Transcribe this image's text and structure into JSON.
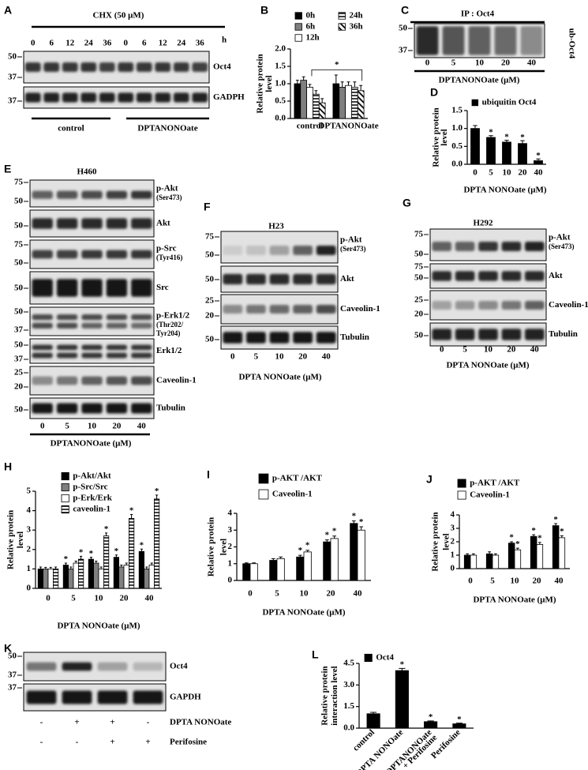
{
  "chart_data": [
    {
      "panel": "B",
      "type": "bar",
      "ylabel": [
        "Relative protein",
        "level"
      ],
      "categories": [
        "control",
        "DPTANONOate"
      ],
      "series": [
        {
          "name": "0h",
          "color": "#000000",
          "values": [
            1.0,
            1.0
          ],
          "errors": [
            0.1,
            0.25
          ]
        },
        {
          "name": "6h",
          "color": "#7f7f7f",
          "values": [
            1.1,
            0.9
          ],
          "errors": [
            0.1,
            0.15
          ]
        },
        {
          "name": "12h",
          "color": "#ffffff",
          "values": [
            0.9,
            0.95
          ],
          "errors": [
            0.08,
            0.1
          ]
        },
        {
          "name": "24h",
          "color": "#ffffff",
          "pattern": "horizontal",
          "values": [
            0.7,
            0.9
          ],
          "errors": [
            0.1,
            0.15
          ]
        },
        {
          "name": "36h",
          "color": "#ffffff",
          "pattern": "diagonal",
          "values": [
            0.45,
            0.8
          ],
          "errors": [
            0.12,
            0.15
          ]
        }
      ],
      "ylim": [
        0,
        2
      ],
      "yticks": [
        {
          "value": 0,
          "label": "0.0"
        },
        {
          "value": 0.5,
          "label": "0.5"
        },
        {
          "value": 1,
          "label": "1.0"
        },
        {
          "value": 1.5,
          "label": "1.5"
        },
        {
          "value": 2,
          "label": "2.0"
        }
      ],
      "annotation": "*"
    },
    {
      "panel": "D",
      "type": "bar",
      "ylabel": [
        "Relative protein",
        "level"
      ],
      "xlabel": "DPTA NONOate (μM)",
      "categories": [
        "0",
        "5",
        "10",
        "20",
        "40"
      ],
      "series": [
        {
          "name": "ubiquitin Oct4",
          "color": "#000000",
          "values": [
            1.0,
            0.75,
            0.62,
            0.58,
            0.1
          ],
          "errors": [
            0.08,
            0.05,
            0.05,
            0.08,
            0.05
          ],
          "stars": [
            null,
            "*",
            "*",
            "*",
            "*"
          ]
        }
      ],
      "ylim": [
        0,
        1.5
      ],
      "yticks": [
        {
          "value": 0,
          "label": "0.0"
        },
        {
          "value": 0.5,
          "label": "0.5"
        },
        {
          "value": 1,
          "label": "1.0"
        },
        {
          "value": 1.5,
          "label": "1.5"
        }
      ]
    },
    {
      "panel": "H",
      "type": "bar",
      "ylabel": [
        "Relative protein",
        "level"
      ],
      "xlabel": "DPTA NONOate (μM)",
      "categories": [
        "0",
        "5",
        "10",
        "20",
        "40"
      ],
      "series": [
        {
          "name": "p-Akt/Akt",
          "color": "#000000",
          "values": [
            1.0,
            1.2,
            1.5,
            1.6,
            1.9
          ],
          "errors": [
            0.1,
            0.1,
            0.1,
            0.12,
            0.12
          ],
          "stars": [
            null,
            "*",
            "*",
            "*",
            "*"
          ]
        },
        {
          "name": "p-Src/Src",
          "color": "#7f7f7f",
          "values": [
            1.0,
            1.0,
            1.3,
            1.1,
            1.0
          ],
          "errors": [
            0.08,
            0.1,
            0.1,
            0.1,
            0.1
          ]
        },
        {
          "name": "p-Erk/Erk",
          "color": "#ffffff",
          "values": [
            1.0,
            1.3,
            1.0,
            1.2,
            1.2
          ],
          "errors": [
            0.08,
            0.1,
            0.1,
            0.1,
            0.1
          ]
        },
        {
          "name": "caveolin-1",
          "color": "#ffffff",
          "pattern": "horizontal",
          "values": [
            1.0,
            1.5,
            2.7,
            3.6,
            4.6
          ],
          "errors": [
            0.1,
            0.15,
            0.15,
            0.2,
            0.2
          ],
          "stars": [
            null,
            "*",
            "*",
            "*",
            "*"
          ]
        }
      ],
      "ylim": [
        0,
        5
      ],
      "yticks": [
        0,
        1,
        2,
        3,
        4,
        5
      ]
    },
    {
      "panel": "I",
      "type": "bar",
      "ylabel": [
        "Relative protein",
        "level"
      ],
      "xlabel": "DPTA NONOate (μM)",
      "categories": [
        "0",
        "5",
        "10",
        "20",
        "40"
      ],
      "series": [
        {
          "name": "p-AKT /AKT",
          "color": "#000000",
          "values": [
            1.0,
            1.2,
            1.4,
            2.3,
            3.4
          ],
          "errors": [
            0.05,
            0.1,
            0.1,
            0.12,
            0.15
          ],
          "stars": [
            null,
            null,
            "*",
            "*",
            "*"
          ]
        },
        {
          "name": "Caveolin-1",
          "color": "#ffffff",
          "values": [
            1.0,
            1.3,
            1.7,
            2.5,
            3.0
          ],
          "errors": [
            0.05,
            0.1,
            0.1,
            0.15,
            0.2
          ],
          "stars": [
            null,
            null,
            "*",
            "*",
            "*"
          ]
        }
      ],
      "ylim": [
        0,
        4
      ],
      "yticks": [
        0,
        1,
        2,
        3,
        4
      ]
    },
    {
      "panel": "J",
      "type": "bar",
      "ylabel": [
        "Relative protein",
        "level"
      ],
      "xlabel": "DPTA NONOate (μM)",
      "categories": [
        "0",
        "5",
        "10",
        "20",
        "40"
      ],
      "series": [
        {
          "name": "p-AKT /AKT",
          "color": "#000000",
          "values": [
            1.0,
            1.1,
            1.9,
            2.4,
            3.2
          ],
          "errors": [
            0.1,
            0.15,
            0.1,
            0.12,
            0.15
          ],
          "stars": [
            null,
            null,
            "*",
            "*",
            "*"
          ]
        },
        {
          "name": "Caveolin-1",
          "color": "#ffffff",
          "values": [
            1.0,
            1.0,
            1.4,
            1.8,
            2.3
          ],
          "errors": [
            0.1,
            0.1,
            0.12,
            0.15,
            0.15
          ],
          "stars": [
            null,
            null,
            "*",
            "*",
            "*"
          ]
        }
      ],
      "ylim": [
        0,
        4
      ],
      "yticks": [
        0,
        1,
        2,
        3,
        4
      ]
    },
    {
      "panel": "L",
      "type": "bar",
      "ylabel": [
        "Relative protein",
        "interaction level"
      ],
      "categories": [
        "control",
        "DPTA NONOate",
        [
          "DPTANONOate",
          "+ Perifosine"
        ],
        "Perifosine"
      ],
      "series": [
        {
          "name": "Oct4",
          "color": "#000000",
          "values": [
            1.0,
            4.0,
            0.45,
            0.3
          ],
          "errors": [
            0.1,
            0.15,
            0.05,
            0.05
          ],
          "stars": [
            null,
            "*",
            "*",
            "*"
          ]
        }
      ],
      "ylim": [
        0,
        4.5
      ],
      "yticks": [
        {
          "value": 0,
          "label": "0.0"
        },
        {
          "value": 1.5,
          "label": "1.5"
        },
        {
          "value": 3,
          "label": "3.0"
        },
        {
          "value": 4.5,
          "label": "4.5"
        }
      ]
    }
  ],
  "blots": [
    {
      "panel": "A",
      "title": "CHX (50 μM)",
      "lanes": [
        "0",
        "6",
        "12",
        "24",
        "36",
        "0",
        "6",
        "12",
        "24",
        "36"
      ],
      "lane_unit": "h",
      "strips": [
        {
          "label": "Oct4",
          "markers": [
            "50",
            "37"
          ]
        },
        {
          "label": "GADPH",
          "markers": [
            "37"
          ]
        }
      ],
      "groups": [
        "control",
        "DPTANONOate"
      ]
    },
    {
      "panel": "C",
      "title": "IP : Oct4",
      "strips": [
        {
          "label": "ub-Oct4",
          "markers": [
            "50",
            "37"
          ]
        }
      ],
      "lanes": [
        "0",
        "5",
        "10",
        "20",
        "40"
      ],
      "xlabel": "DPTANONOate (μM)"
    },
    {
      "panel": "E",
      "title": "H460",
      "strips": [
        {
          "label": "p-Akt",
          "sublabel": [
            "(Ser473)"
          ],
          "markers": [
            "75",
            "50"
          ]
        },
        {
          "label": "Akt",
          "markers": [
            "50"
          ]
        },
        {
          "label": "p-Src",
          "sublabel": [
            "(Tyr416)"
          ],
          "markers": [
            "75",
            "50"
          ]
        },
        {
          "label": "Src",
          "markers": [
            "50"
          ]
        },
        {
          "label": "p-Erk1/2",
          "sublabel": [
            "(Thr202/",
            "Tyr204)"
          ],
          "markers": [
            "50",
            "37"
          ]
        },
        {
          "label": "Erk1/2",
          "markers": [
            "50",
            "37"
          ]
        },
        {
          "label": "Caveolin-1",
          "markers": [
            "25",
            "20"
          ]
        },
        {
          "label": "Tubulin",
          "markers": [
            "50"
          ]
        }
      ],
      "lanes": [
        "0",
        "5",
        "10",
        "20",
        "40"
      ],
      "xlabel": "DPTANONOate (μM)"
    },
    {
      "panel": "F",
      "title": "H23",
      "strips": [
        {
          "label": "p-Akt",
          "sublabel": [
            "(Ser473)"
          ],
          "markers": [
            "75",
            "50"
          ]
        },
        {
          "label": "Akt",
          "markers": [
            "50"
          ]
        },
        {
          "label": "Caveolin-1",
          "markers": [
            "25",
            "20"
          ]
        },
        {
          "label": "Tubulin",
          "markers": [
            "50"
          ]
        }
      ],
      "lanes": [
        "0",
        "5",
        "10",
        "20",
        "40"
      ],
      "xlabel": "DPTA NONOate (μM)"
    },
    {
      "panel": "G",
      "title": "H292",
      "strips": [
        {
          "label": "p-Akt",
          "sublabel": [
            "(Ser473)"
          ],
          "markers": [
            "75",
            "50"
          ]
        },
        {
          "label": "Akt",
          "markers": [
            "75",
            "50"
          ]
        },
        {
          "label": "Caveolin-1",
          "markers": [
            "25",
            "20"
          ]
        },
        {
          "label": "Tubulin",
          "markers": [
            "50"
          ]
        }
      ],
      "lanes": [
        "0",
        "5",
        "10",
        "20",
        "40"
      ],
      "xlabel": "DPTA NONOate (μM)"
    },
    {
      "panel": "K",
      "strips": [
        {
          "label": "Oct4",
          "markers": [
            "50",
            "37"
          ]
        },
        {
          "label": "GAPDH",
          "markers": [
            "37"
          ]
        }
      ],
      "treatments": [
        {
          "name": "DPTA NONOate",
          "signs": [
            "-",
            "+",
            "+",
            "-"
          ]
        },
        {
          "name": "Perifosine",
          "signs": [
            "-",
            "-",
            "+",
            "+"
          ]
        }
      ]
    }
  ]
}
